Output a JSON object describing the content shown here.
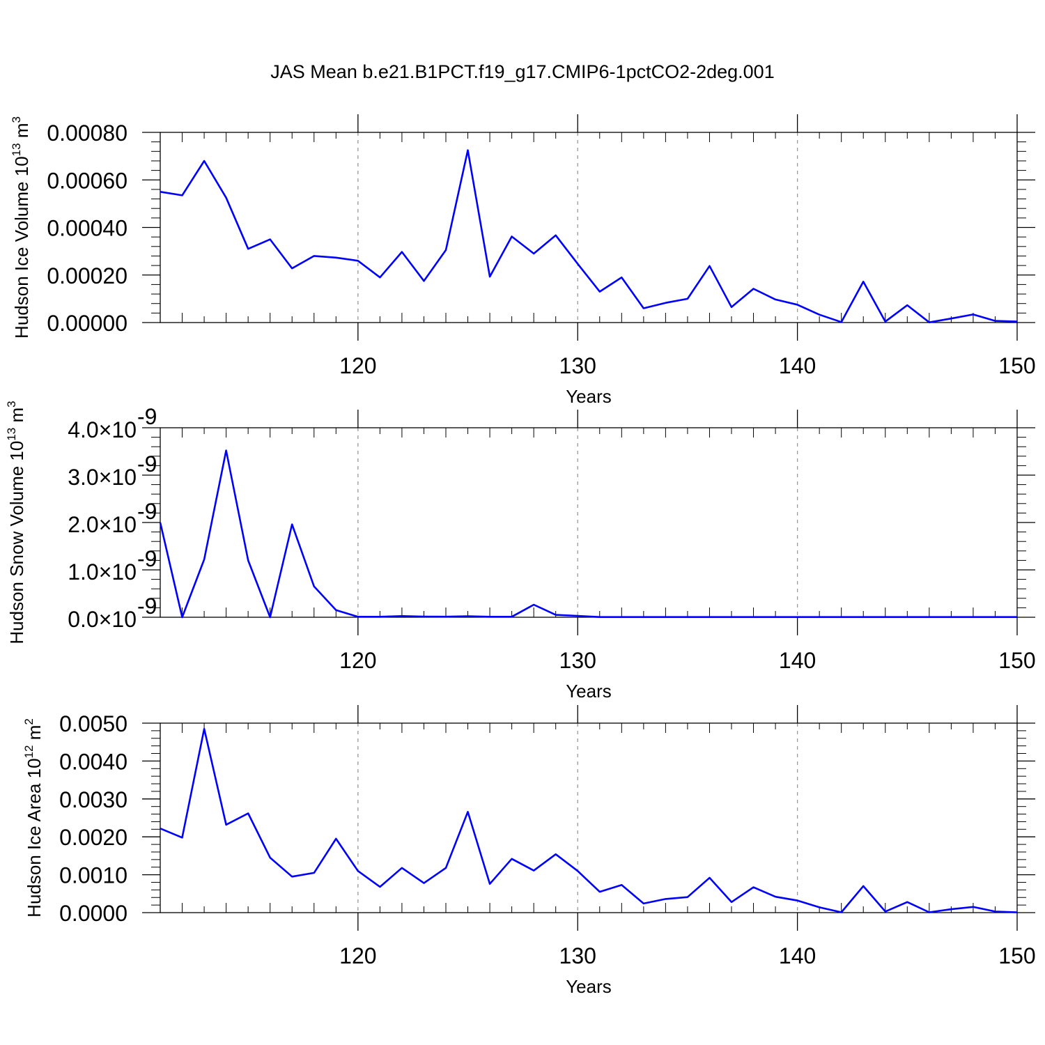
{
  "title": "JAS Mean b.e21.B1PCT.f19_g17.CMIP6-1pctCO2-2deg.001",
  "line_color": "#0000ff",
  "chart_data": [
    {
      "type": "line",
      "xlabel": "Years",
      "ylabel": "Hudson Ice Volume 10",
      "ylabel_sup": "13",
      "ylabel_unit": "m",
      "ylabel_unit_sup": "3",
      "xlim": [
        111,
        150
      ],
      "ylim": [
        0,
        0.0008
      ],
      "xticks": [
        120,
        130,
        140,
        150
      ],
      "yticks": [
        "0.00000",
        "0.00020",
        "0.00040",
        "0.00060",
        "0.00080"
      ],
      "ytick_values": [
        0,
        0.0002,
        0.0004,
        0.0006,
        0.0008
      ],
      "grid": "vertical dashed at major x ticks",
      "x": [
        111,
        112,
        113,
        114,
        115,
        116,
        117,
        118,
        119,
        120,
        121,
        122,
        123,
        124,
        125,
        126,
        127,
        128,
        129,
        130,
        131,
        132,
        133,
        134,
        135,
        136,
        137,
        138,
        139,
        140,
        141,
        142,
        143,
        144,
        145,
        146,
        147,
        148,
        149,
        150
      ],
      "y": [
        0.00055,
        0.000535,
        0.00068,
        0.000525,
        0.00031,
        0.00035,
        0.000228,
        0.00028,
        0.000273,
        0.00026,
        0.00019,
        0.000297,
        0.000175,
        0.000305,
        0.000725,
        0.000193,
        0.000362,
        0.00029,
        0.000367,
        0.000247,
        0.00013,
        0.00019,
        6e-05,
        8.3e-05,
        0.0001,
        0.000238,
        6.5e-05,
        0.000142,
        9.7e-05,
        7.5e-05,
        3.3e-05,
        2e-06,
        0.000172,
        4e-06,
        7.3e-05,
        1e-06,
        1.7e-05,
        3.4e-05,
        7e-06,
        4e-06
      ]
    },
    {
      "type": "line",
      "xlabel": "Years",
      "ylabel": "Hudson Snow Volume 10",
      "ylabel_sup": "13",
      "ylabel_unit": "m",
      "ylabel_unit_sup": "3",
      "xlim": [
        111,
        150
      ],
      "ylim": [
        0,
        4e-09
      ],
      "xticks": [
        120,
        130,
        140,
        150
      ],
      "yticks": [
        "0.0",
        "1.0",
        "2.0",
        "3.0",
        "4.0"
      ],
      "ytick_values": [
        0,
        1e-09,
        2e-09,
        3e-09,
        4e-09
      ],
      "ytick_suffix": "×10",
      "ytick_exp": "-9",
      "grid": "vertical dashed at major x ticks",
      "x": [
        111,
        112,
        113,
        114,
        115,
        116,
        117,
        118,
        119,
        120,
        121,
        122,
        123,
        124,
        125,
        126,
        127,
        128,
        129,
        130,
        131,
        132,
        133,
        134,
        135,
        136,
        137,
        138,
        139,
        140,
        141,
        142,
        143,
        144,
        145,
        146,
        147,
        148,
        149,
        150
      ],
      "y": [
        2e-09,
        0,
        1.22e-09,
        3.52e-09,
        1.2e-09,
        0,
        1.96e-09,
        6.5e-10,
        1.5e-10,
        1e-11,
        1e-11,
        2.5e-11,
        1.5e-11,
        1.2e-11,
        2e-11,
        1e-11,
        1e-11,
        2.65e-10,
        5e-11,
        3e-11,
        5e-12,
        5e-12,
        5e-12,
        5e-12,
        5e-12,
        5e-12,
        5e-12,
        5e-12,
        5e-12,
        5e-12,
        5e-12,
        5e-12,
        5e-12,
        5e-12,
        5e-12,
        5e-12,
        5e-12,
        5e-12,
        5e-12,
        5e-12
      ]
    },
    {
      "type": "line",
      "xlabel": "Years",
      "ylabel": "Hudson Ice Area 10",
      "ylabel_sup": "12",
      "ylabel_unit": "m",
      "ylabel_unit_sup": "2",
      "xlim": [
        111,
        150
      ],
      "ylim": [
        0,
        0.005
      ],
      "xticks": [
        120,
        130,
        140,
        150
      ],
      "yticks": [
        "0.0000",
        "0.0010",
        "0.0020",
        "0.0030",
        "0.0040",
        "0.0050"
      ],
      "ytick_values": [
        0,
        0.001,
        0.002,
        0.003,
        0.004,
        0.005
      ],
      "grid": "vertical dashed at major x ticks",
      "x": [
        111,
        112,
        113,
        114,
        115,
        116,
        117,
        118,
        119,
        120,
        121,
        122,
        123,
        124,
        125,
        126,
        127,
        128,
        129,
        130,
        131,
        132,
        133,
        134,
        135,
        136,
        137,
        138,
        139,
        140,
        141,
        142,
        143,
        144,
        145,
        146,
        147,
        148,
        149,
        150
      ],
      "y": [
        0.00222,
        0.00198,
        0.00485,
        0.00232,
        0.00262,
        0.00145,
        0.00095,
        0.00105,
        0.00195,
        0.0011,
        0.00068,
        0.00118,
        0.00078,
        0.00118,
        0.00266,
        0.00076,
        0.00142,
        0.00111,
        0.00154,
        0.0011,
        0.00055,
        0.00073,
        0.00024,
        0.00036,
        0.00041,
        0.00092,
        0.00028,
        0.00067,
        0.00042,
        0.00032,
        0.00014,
        1e-05,
        0.0007,
        3e-05,
        0.00028,
        1e-05,
        9e-05,
        0.00015,
        3e-05,
        1e-05
      ]
    }
  ]
}
